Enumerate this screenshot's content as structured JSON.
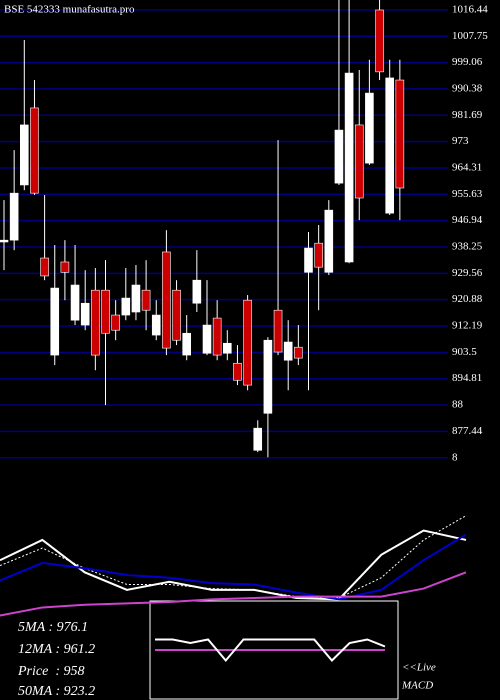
{
  "chart_data": [
    {
      "type": "candlestick",
      "title": "BSE 542333 munafasutra.pro",
      "open": [
        939.9,
        940.5,
        958.7,
        984.1,
        934.6,
        902.6,
        933.3,
        914.1,
        912.5,
        924.0,
        924.0,
        915.8,
        915.8,
        916.8,
        924.0,
        909.2,
        936.6,
        924.0,
        902.6,
        919.7,
        903.2,
        914.8,
        903.2,
        899.9,
        920.7,
        871.2,
        883.4,
        917.4,
        900.9,
        905.2,
        929.9,
        939.5,
        929.9,
        959.3,
        933.3,
        978.5,
        965.9,
        1016.4,
        949.4,
        993.3
      ],
      "high": [
        953.7,
        970.2,
        1006.5,
        993.3,
        955.4,
        938.9,
        940.5,
        938.9,
        930.6,
        931.3,
        933.9,
        920.7,
        931.3,
        932.3,
        933.9,
        920.7,
        943.8,
        927.3,
        915.8,
        937.2,
        927.3,
        920.7,
        910.8,
        905.9,
        922.4,
        881.1,
        908.5,
        973.5,
        914.1,
        912.5,
        943.2,
        945.5,
        953.7,
        1019.7,
        1019.7,
        996.6,
        1000.0,
        1019.7,
        1000.0,
        1000.0
      ],
      "low": [
        930.6,
        937.2,
        957.0,
        955.4,
        927.3,
        899.3,
        920.7,
        912.5,
        910.8,
        897.6,
        886.1,
        907.5,
        914.1,
        914.1,
        910.8,
        907.5,
        902.6,
        905.9,
        900.9,
        916.8,
        902.6,
        900.9,
        900.9,
        892.7,
        891.0,
        870.6,
        868.9,
        902.6,
        891.0,
        899.3,
        891.0,
        917.4,
        929.0,
        958.7,
        932.9,
        947.1,
        965.3,
        993.3,
        948.8,
        947.1
      ],
      "close": [
        940.5,
        956.0,
        978.5,
        956.0,
        928.7,
        924.7,
        929.9,
        925.7,
        919.7,
        902.6,
        909.8,
        910.8,
        921.4,
        925.7,
        917.4,
        915.8,
        904.9,
        907.5,
        909.8,
        927.3,
        912.5,
        902.6,
        906.5,
        894.3,
        892.7,
        878.5,
        907.5,
        903.6,
        906.9,
        901.6,
        937.9,
        931.6,
        950.4,
        976.8,
        995.6,
        954.4,
        989.0,
        996.0,
        994.0,
        957.7
      ],
      "up_color": "#ffffff",
      "down_color": "#cc0000",
      "grid": true,
      "grid_color": "#000080",
      "ylim": [
        868,
        1019.7
      ],
      "yticks": [
        1016.44,
        1007.75,
        999.06,
        990.38,
        981.69,
        973,
        964.31,
        955.63,
        946.94,
        938.25,
        929.56,
        920.88,
        912.19,
        903.5,
        894.81,
        {
          "value": 886.13,
          "label": "88"
        },
        877.44,
        {
          "value": 868.75,
          "label": "8"
        }
      ]
    },
    {
      "type": "line",
      "x": [
        0,
        4,
        8,
        12,
        16,
        20,
        24,
        28,
        32,
        36,
        40,
        44
      ],
      "xlim": [
        0,
        44
      ],
      "ylim": [
        0,
        100
      ],
      "series": [
        {
          "color": "#ffffff",
          "style": "solid",
          "values": [
            48,
            63,
            39,
            26,
            32,
            26,
            26,
            20,
            19,
            52,
            70,
            63
          ]
        },
        {
          "color": "#ffffff",
          "style": "dotted",
          "values": [
            44,
            57,
            42,
            30,
            30,
            27,
            26,
            21,
            20,
            35,
            63,
            81
          ]
        },
        {
          "color": "#0000cc",
          "style": "solid",
          "values": [
            33,
            46,
            42,
            37,
            35,
            31,
            30,
            24,
            19,
            26,
            48,
            67
          ]
        },
        {
          "color": "#cc44cc",
          "style": "solid",
          "values": [
            7,
            13,
            15,
            16,
            17,
            19,
            20,
            21,
            21,
            21,
            27,
            39
          ]
        }
      ]
    },
    {
      "type": "macd",
      "x": [
        0,
        1,
        2,
        3,
        4,
        5,
        6,
        7,
        8,
        9,
        10,
        11,
        12,
        13
      ],
      "xlim": [
        0,
        13
      ],
      "ylim": [
        -10,
        10
      ],
      "series": [
        {
          "color": "#cc44cc",
          "style": "solid",
          "values": [
            0,
            0,
            0,
            0,
            0,
            0,
            0,
            0,
            0,
            0,
            0,
            0,
            0,
            0
          ]
        },
        {
          "color": "#ffffff",
          "style": "solid",
          "values": [
            3,
            3,
            2,
            3,
            -3,
            3,
            3,
            3,
            3,
            3,
            -3,
            2,
            3,
            1
          ]
        }
      ]
    }
  ],
  "legend": [
    "5MA : 976.1",
    "12MA : 961.2",
    "Price  : 958",
    "50MA : 923.2"
  ],
  "live_label": "<<Live",
  "macd_label": "MACD"
}
